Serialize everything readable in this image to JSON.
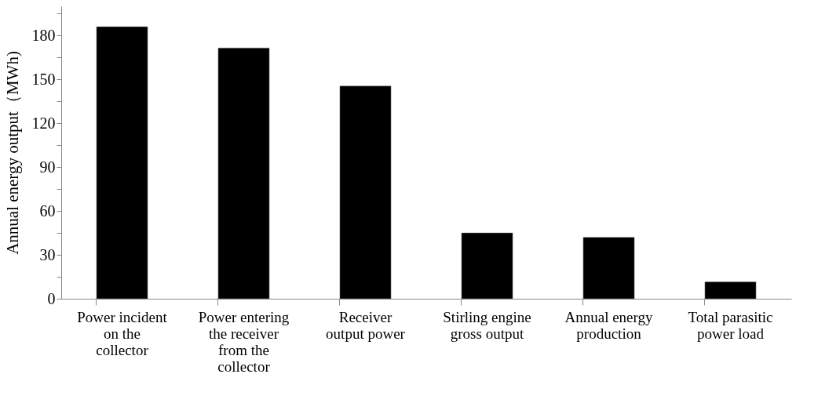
{
  "chart_data": {
    "type": "bar",
    "ylabel": "Annual energy output（MWh)",
    "categories": [
      "Power incident on the collector",
      "Power entering the receiver from the collector",
      "Receiver output power",
      "Stirling engine gross output",
      "Annual energy production",
      "Total parasitic power load"
    ],
    "values": [
      186,
      171.5,
      145.5,
      45,
      42,
      11.5
    ],
    "color": "#000000",
    "ylim": [
      0,
      200
    ],
    "yticks": [
      0,
      {
        "value": 15,
        "label": null
      },
      30,
      {
        "value": 45,
        "label": null
      },
      60,
      {
        "value": 75,
        "label": null
      },
      90,
      {
        "value": 105,
        "label": null
      },
      120,
      {
        "value": 135,
        "label": null
      },
      150,
      {
        "value": 165,
        "label": null
      },
      180,
      {
        "value": 195,
        "label": null
      }
    ],
    "grid": false
  }
}
